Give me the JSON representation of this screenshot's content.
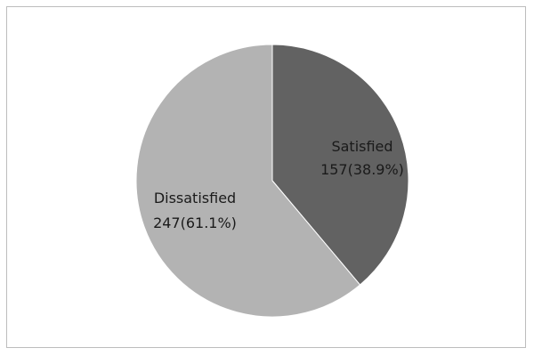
{
  "chart_data": {
    "type": "pie",
    "title": "",
    "slices": [
      {
        "name": "Satisfied",
        "value": 157,
        "percent": "38.9%",
        "display": "157(38.9%)",
        "color": "#626262"
      },
      {
        "name": "Dissatisfied",
        "value": 247,
        "percent": "61.1%",
        "display": "247(61.1%)",
        "color": "#b3b3b3"
      }
    ],
    "start": "12 o'clock",
    "direction": "clockwise",
    "legend": "none",
    "data_labels": "inside"
  }
}
